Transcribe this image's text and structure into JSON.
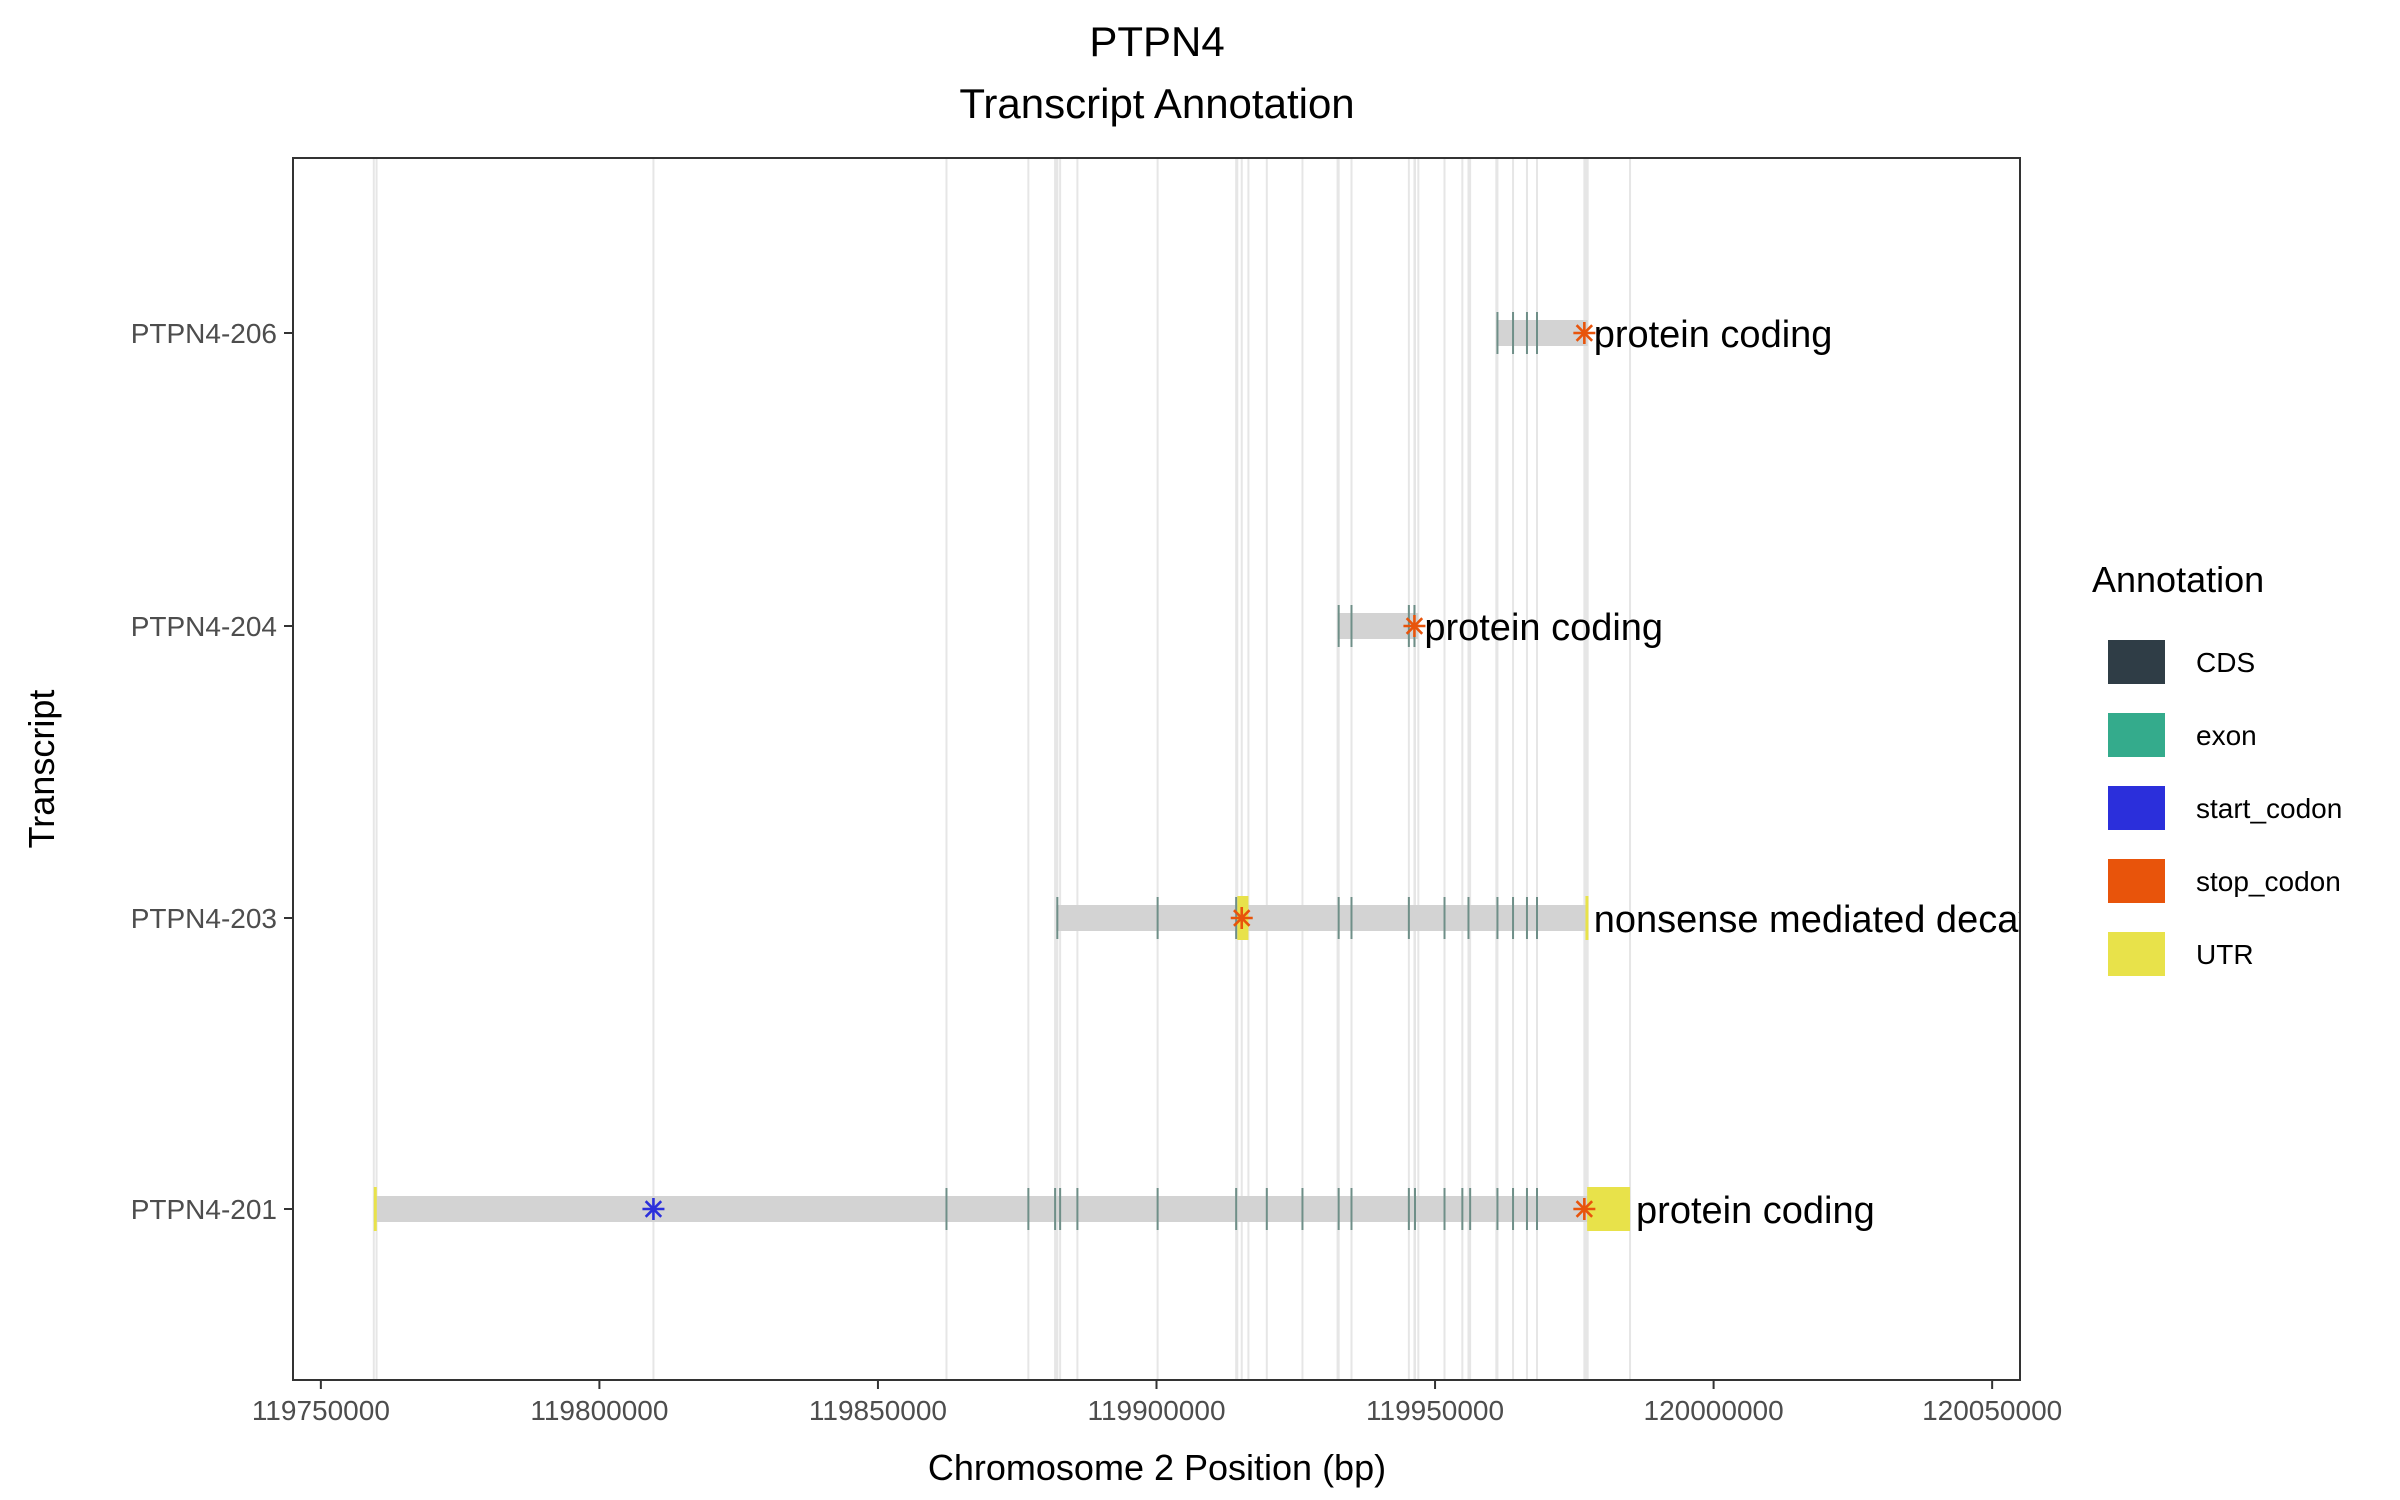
{
  "chart_data": {
    "type": "transcript_annotation",
    "title": "PTPN4",
    "subtitle": "Transcript Annotation",
    "xlabel": "Chromosome 2 Position (bp)",
    "ylabel": "Transcript",
    "xlim": [
      119745000,
      120055000
    ],
    "x_ticks": [
      119750000,
      119800000,
      119850000,
      119900000,
      119950000,
      120000000,
      120050000
    ],
    "x_tick_labels": [
      "119750000",
      "119800000",
      "119850000",
      "119900000",
      "119950000",
      "120000000",
      "120050000"
    ],
    "grid": true,
    "legend": {
      "title": "Annotation",
      "position": "right",
      "items": [
        {
          "label": "CDS",
          "color": "#2F3D46"
        },
        {
          "label": "exon",
          "color": "#34AB8C"
        },
        {
          "label": "start_codon",
          "color": "#2B2FDB"
        },
        {
          "label": "stop_codon",
          "color": "#E8540B"
        },
        {
          "label": "UTR",
          "color": "#E8E24A"
        }
      ]
    },
    "transcripts": [
      {
        "name": "PTPN4-206",
        "biotype": "protein coding",
        "start": 119961000,
        "end": 119977400,
        "exons": [
          119961200,
          119964000,
          119966500,
          119968300
        ],
        "utr": [],
        "start_codon": null,
        "stop_codon": 119976800
      },
      {
        "name": "PTPN4-204",
        "biotype": "protein coding",
        "start": 119932500,
        "end": 119947000,
        "exons": [
          119932700,
          119935000,
          119945300,
          119946300
        ],
        "utr": [],
        "start_codon": null,
        "stop_codon": 119946300
      },
      {
        "name": "PTPN4-203",
        "biotype": "nonsense mediated decay",
        "start": 119882000,
        "end": 119977400,
        "exons": [
          119882200,
          119900200,
          119914300,
          119932700,
          119935000,
          119945300,
          119951700,
          119956000,
          119961200,
          119964000,
          119966500,
          119968300
        ],
        "utr": [
          [
            119914500,
            119916500
          ],
          [
            119977000,
            119977400
          ]
        ],
        "start_codon": null,
        "stop_codon": 119915300
      },
      {
        "name": "PTPN4-201",
        "biotype": "protein coding",
        "start": 119759500,
        "end": 119985000,
        "exons": [
          119862300,
          119877000,
          119881800,
          119882700,
          119885800,
          119900200,
          119914300,
          119919800,
          119926200,
          119932700,
          119935000,
          119945300,
          119946400,
          119951700,
          119954900,
          119956300,
          119961200,
          119964000,
          119966500,
          119968300
        ],
        "utr": [
          [
            119759500,
            119760000
          ],
          [
            119977300,
            119985000
          ]
        ],
        "start_codon": 119809700,
        "stop_codon": 119976800
      }
    ]
  }
}
